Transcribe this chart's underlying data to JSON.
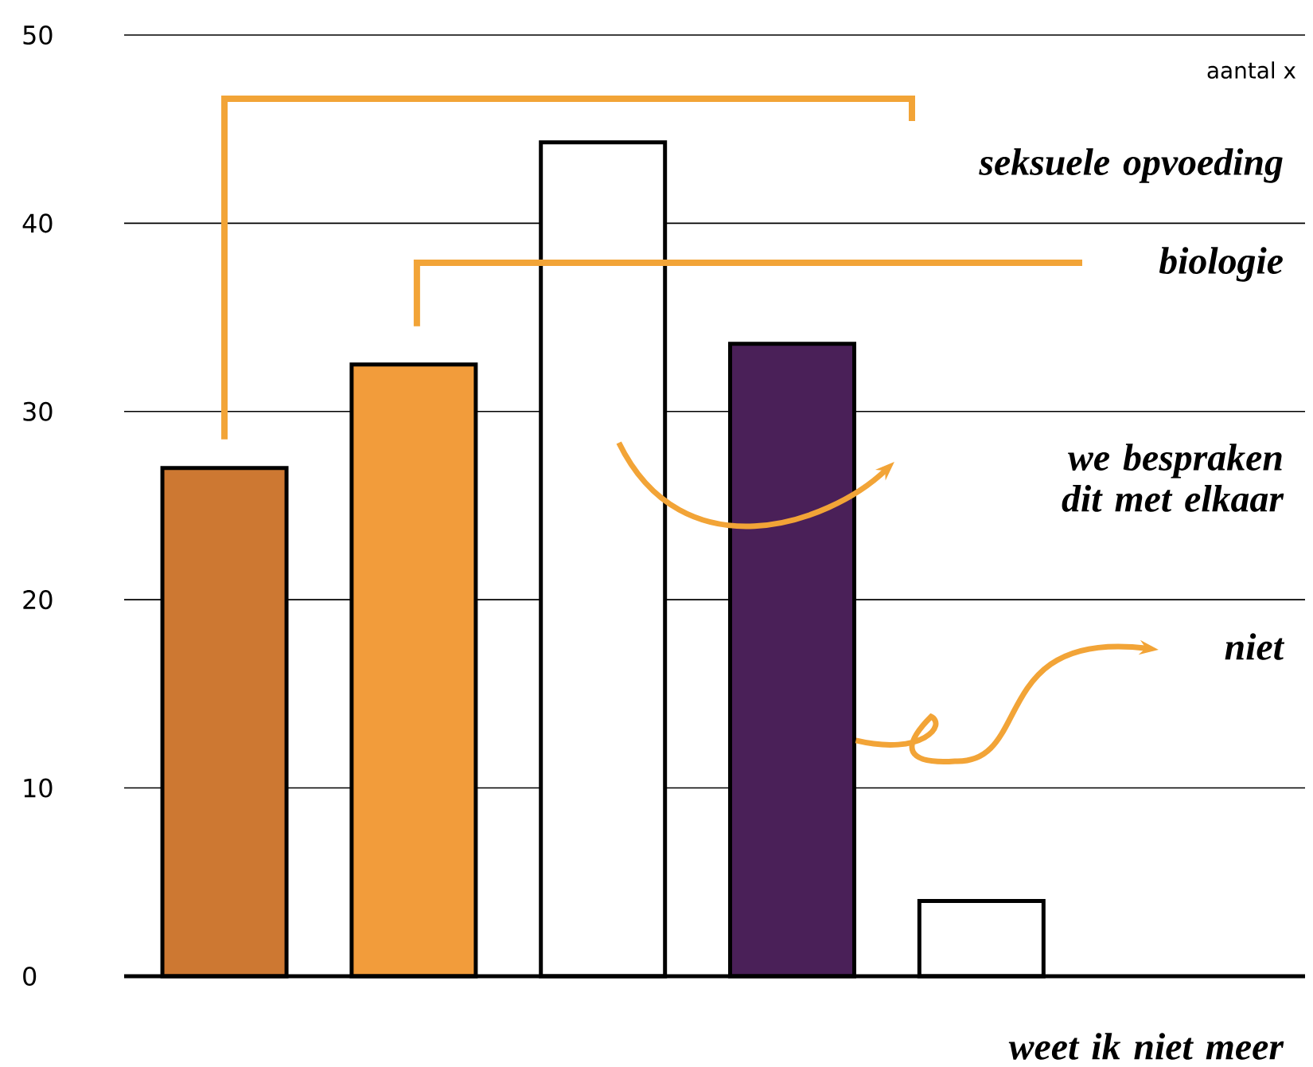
{
  "chart_data": {
    "type": "bar",
    "categories": [
      null,
      null,
      null,
      null,
      null
    ],
    "values": [
      27,
      32.5,
      44.3,
      33.6,
      4
    ],
    "colors": [
      "#cd7832",
      "#f29c3b",
      "#ffffff",
      "#4a2058",
      "#ffffff"
    ],
    "ylim": [
      0,
      50
    ],
    "yticks": [
      0,
      10,
      20,
      30,
      40,
      50
    ],
    "grid": "y",
    "annotations": [
      "aantal x",
      "seksuele opvoeding",
      "biologie",
      "we bespraken dit met elkaar",
      "niet",
      "weet ik niet meer"
    ]
  }
}
